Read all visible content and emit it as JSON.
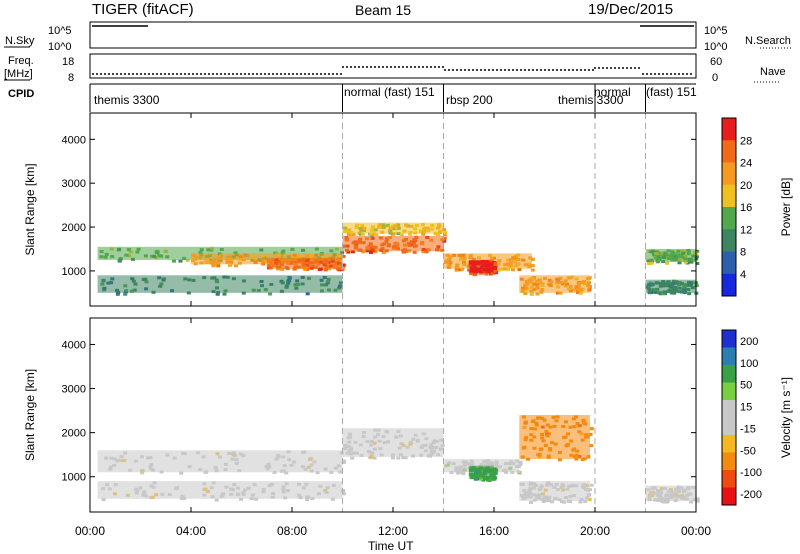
{
  "header": {
    "radar": "TIGER (fitACF)",
    "beam": "Beam 15",
    "date": "19/Dec/2015"
  },
  "noise_panel": {
    "left_label": "N.Sky",
    "left_ticks": [
      "10^5",
      "10^0"
    ],
    "right_ticks": [
      "10^5",
      "10^0"
    ],
    "right_label": "N.Search"
  },
  "freq_panel": {
    "left_label_line1": "Freq.",
    "left_label_line2": "[MHz]",
    "left_ticks": [
      "18",
      "8"
    ],
    "right_ticks": [
      "60",
      "0"
    ],
    "right_label": "Nave"
  },
  "cpid": {
    "label": "CPID",
    "segments": [
      {
        "name": "themis 3300",
        "start_h": 0,
        "end_h": 10
      },
      {
        "name": "normal (fast) 151",
        "start_h": 10,
        "end_h": 14
      },
      {
        "name": "rbsp 200",
        "start_h": 14,
        "end_h": 20
      },
      {
        "name": "themis 3300",
        "start_h": 18.5,
        "end_h": 20
      },
      {
        "name": "normal",
        "start_h": 20,
        "end_h": 22
      },
      {
        "name": "(fast) 151",
        "start_h": 22,
        "end_h": 24
      }
    ]
  },
  "colors": {
    "power_scale": [
      "#1528e0",
      "#2c5fae",
      "#3d8560",
      "#52a84d",
      "#f0c020",
      "#f59a20",
      "#f06a18",
      "#e81d1d"
    ],
    "velocity_scale": [
      "#e81010",
      "#f04a10",
      "#f58a10",
      "#f5b820",
      "#c8c8c8",
      "#c8c8c8",
      "#78d040",
      "#3aa048",
      "#2a7fb0",
      "#2030d0"
    ],
    "gray": "#c8c8c8"
  },
  "chart_data": [
    {
      "type": "heatmap",
      "name": "power",
      "ylabel": "Slant Range [km]",
      "yticks": [
        "1000",
        "2000",
        "3000",
        "4000"
      ],
      "ylim": [
        200,
        4600
      ],
      "colorbar_label": "Power [dB]",
      "colorbar_ticks": [
        "4",
        "8",
        "12",
        "16",
        "20",
        "24",
        "28"
      ],
      "clim": [
        0,
        30
      ],
      "bands": [
        {
          "t0": 0.3,
          "t1": 10,
          "r0": 1250,
          "r1": 1550,
          "level": 3
        },
        {
          "t0": 4,
          "t1": 10,
          "r0": 1150,
          "r1": 1400,
          "level": 5
        },
        {
          "t0": 7,
          "t1": 10,
          "r0": 1050,
          "r1": 1300,
          "level": 6
        },
        {
          "t0": 0.3,
          "t1": 10,
          "r0": 500,
          "r1": 900,
          "level": 2
        },
        {
          "t0": 10,
          "t1": 14,
          "r0": 1450,
          "r1": 1800,
          "level": 6
        },
        {
          "t0": 10,
          "t1": 14,
          "r0": 1850,
          "r1": 2100,
          "level": 4
        },
        {
          "t0": 14,
          "t1": 17.5,
          "r0": 1050,
          "r1": 1400,
          "level": 5
        },
        {
          "t0": 15,
          "t1": 16,
          "r0": 950,
          "r1": 1250,
          "level": 7
        },
        {
          "t0": 17,
          "t1": 19.8,
          "r0": 500,
          "r1": 900,
          "level": 5
        },
        {
          "t0": 22,
          "t1": 24,
          "r0": 500,
          "r1": 800,
          "level": 2
        },
        {
          "t0": 22,
          "t1": 24,
          "r0": 1200,
          "r1": 1500,
          "level": 3
        }
      ]
    },
    {
      "type": "heatmap",
      "name": "velocity",
      "ylabel": "Slant Range [km]",
      "yticks": [
        "1000",
        "2000",
        "3000",
        "4000"
      ],
      "ylim": [
        200,
        4600
      ],
      "colorbar_label": "Velocity [m s⁻¹]",
      "colorbar_ticks": [
        "200",
        "100",
        "50",
        "15",
        "-15",
        "-50",
        "-100",
        "-200"
      ],
      "clim": [
        -250,
        250
      ],
      "bands": [
        {
          "t0": 0.3,
          "t1": 10,
          "r0": 1100,
          "r1": 1600,
          "level": 0
        },
        {
          "t0": 0.3,
          "t1": 10,
          "r0": 500,
          "r1": 900,
          "level": 0
        },
        {
          "t0": 10,
          "t1": 14,
          "r0": 1450,
          "r1": 2100,
          "level": 0
        },
        {
          "t0": 14,
          "t1": 17,
          "r0": 1100,
          "r1": 1400,
          "level": -1
        },
        {
          "t0": 15,
          "t1": 16,
          "r0": 950,
          "r1": 1250,
          "level": -3
        },
        {
          "t0": 17,
          "t1": 19.8,
          "r0": 1400,
          "r1": 2400,
          "level": 2
        },
        {
          "t0": 17,
          "t1": 19.8,
          "r0": 450,
          "r1": 900,
          "level": 0
        },
        {
          "t0": 22,
          "t1": 24,
          "r0": 450,
          "r1": 800,
          "level": 0
        }
      ]
    }
  ],
  "xaxis": {
    "label": "Time UT",
    "ticks": [
      "00:00",
      "04:00",
      "08:00",
      "12:00",
      "16:00",
      "20:00",
      "00:00"
    ],
    "range_h": [
      0,
      24
    ]
  }
}
